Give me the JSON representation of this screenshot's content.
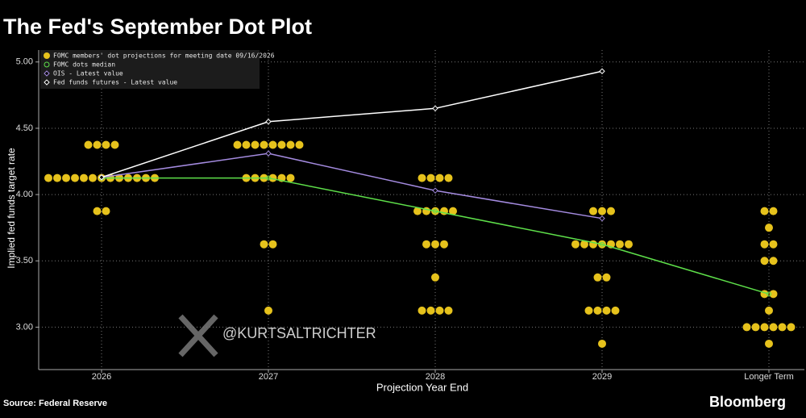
{
  "chart_data": {
    "type": "dot_plot",
    "title": "The Fed's September Dot Plot",
    "y_label": "Implied fed funds target rate",
    "x_label": "Projection Year End",
    "source": "Source: Federal Reserve",
    "brand": "Bloomberg",
    "watermark": "@KURTSALTRICHTER",
    "categories": [
      "2026",
      "2027",
      "2028",
      "2029",
      "Longer Term"
    ],
    "ylim": [
      2.68,
      5.09
    ],
    "yticks": [
      {
        "value": 3,
        "label": "3.00"
      },
      {
        "value": 3.5,
        "label": "3.50"
      },
      {
        "value": 4,
        "label": "4.00"
      },
      {
        "value": 4.5,
        "label": "4.50"
      },
      {
        "value": 5,
        "label": "5.00"
      }
    ],
    "grid": true,
    "legend": "top-left",
    "dots": {
      "name": "FOMC members' dot projections for meeting date 09/16/2026",
      "color": "#e6c21c",
      "values": [
        [
          4.375,
          4.125,
          3.875
        ],
        [
          4.375,
          4.125,
          3.625,
          3.125
        ],
        [
          4.125,
          3.875,
          3.625,
          3.375,
          3.125
        ],
        [
          3.875,
          3.625,
          3.375,
          3.125,
          2.875
        ],
        [
          3.875,
          3.75,
          3.625,
          3.5,
          3.25,
          3.125,
          3.0,
          2.875
        ]
      ],
      "counts": [
        [
          4,
          13,
          2
        ],
        [
          8,
          6,
          2,
          1
        ],
        [
          4,
          5,
          3,
          1,
          4
        ],
        [
          3,
          7,
          2,
          4,
          1
        ],
        [
          2,
          1,
          2,
          2,
          2,
          1,
          6,
          1
        ]
      ]
    },
    "series": [
      {
        "name": "FOMC dots median",
        "color": "#5ee04a",
        "marker": "circle",
        "values": [
          4.125,
          4.125,
          3.875,
          3.625,
          3.25
        ]
      },
      {
        "name": "OIS - Latest value",
        "color": "#a48be0",
        "marker": "diamond",
        "values": [
          4.13,
          4.31,
          4.03,
          3.82,
          null
        ]
      },
      {
        "name": "Fed funds futures - Latest value",
        "color": "#ffffff",
        "marker": "diamond",
        "values": [
          4.13,
          4.55,
          4.65,
          4.93,
          null
        ]
      }
    ]
  }
}
